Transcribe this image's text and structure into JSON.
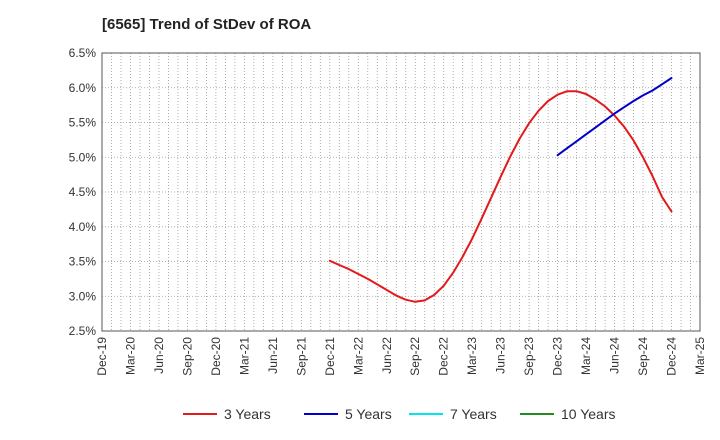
{
  "chart_data": {
    "type": "line",
    "title": "[6565]  Trend of StDev of ROA",
    "xlabel": "",
    "ylabel": "",
    "x_ticks": [
      "Dec-19",
      "Mar-20",
      "Jun-20",
      "Sep-20",
      "Dec-20",
      "Mar-21",
      "Jun-21",
      "Sep-21",
      "Dec-21",
      "Mar-22",
      "Jun-22",
      "Sep-22",
      "Dec-22",
      "Mar-23",
      "Jun-23",
      "Sep-23",
      "Dec-23",
      "Mar-24",
      "Jun-24",
      "Sep-24",
      "Dec-24",
      "Mar-25"
    ],
    "y_ticks": [
      "2.5%",
      "3.0%",
      "3.5%",
      "4.0%",
      "4.5%",
      "5.0%",
      "5.5%",
      "6.0%",
      "6.5%"
    ],
    "ylim": [
      2.5,
      6.5
    ],
    "y_unit": "%",
    "grid": true,
    "legend_position": "bottom",
    "series": [
      {
        "name": "3 Years",
        "color": "#e31a1c",
        "points": [
          [
            "Dec-21",
            3.51
          ],
          [
            "Jan-22",
            3.45
          ],
          [
            "Feb-22",
            3.39
          ],
          [
            "Mar-22",
            3.32
          ],
          [
            "Apr-22",
            3.25
          ],
          [
            "May-22",
            3.17
          ],
          [
            "Jun-22",
            3.09
          ],
          [
            "Jul-22",
            3.01
          ],
          [
            "Aug-22",
            2.95
          ],
          [
            "Sep-22",
            2.92
          ],
          [
            "Oct-22",
            2.94
          ],
          [
            "Nov-22",
            3.02
          ],
          [
            "Dec-22",
            3.15
          ],
          [
            "Jan-23",
            3.34
          ],
          [
            "Feb-23",
            3.57
          ],
          [
            "Mar-23",
            3.83
          ],
          [
            "Apr-23",
            4.12
          ],
          [
            "May-23",
            4.42
          ],
          [
            "Jun-23",
            4.72
          ],
          [
            "Jul-23",
            5.01
          ],
          [
            "Aug-23",
            5.27
          ],
          [
            "Sep-23",
            5.49
          ],
          [
            "Oct-23",
            5.67
          ],
          [
            "Nov-23",
            5.81
          ],
          [
            "Dec-23",
            5.9
          ],
          [
            "Jan-24",
            5.95
          ],
          [
            "Feb-24",
            5.95
          ],
          [
            "Mar-24",
            5.91
          ],
          [
            "Apr-24",
            5.83
          ],
          [
            "May-24",
            5.73
          ],
          [
            "Jun-24",
            5.6
          ],
          [
            "Jul-24",
            5.44
          ],
          [
            "Aug-24",
            5.24
          ],
          [
            "Sep-24",
            5.0
          ],
          [
            "Oct-24",
            4.73
          ],
          [
            "Nov-24",
            4.43
          ],
          [
            "Dec-24",
            4.22
          ]
        ]
      },
      {
        "name": "5 Years",
        "color": "#0000cc",
        "points": [
          [
            "Dec-23",
            5.03
          ],
          [
            "Jan-24",
            5.13
          ],
          [
            "Feb-24",
            5.23
          ],
          [
            "Mar-24",
            5.33
          ],
          [
            "Apr-24",
            5.43
          ],
          [
            "May-24",
            5.53
          ],
          [
            "Jun-24",
            5.63
          ],
          [
            "Jul-24",
            5.72
          ],
          [
            "Aug-24",
            5.81
          ],
          [
            "Sep-24",
            5.89
          ],
          [
            "Oct-24",
            5.96
          ],
          [
            "Nov-24",
            6.05
          ],
          [
            "Dec-24",
            6.14
          ]
        ]
      },
      {
        "name": "7 Years",
        "color": "#00e5ee",
        "points": []
      },
      {
        "name": "10 Years",
        "color": "#228b22",
        "points": []
      }
    ]
  }
}
